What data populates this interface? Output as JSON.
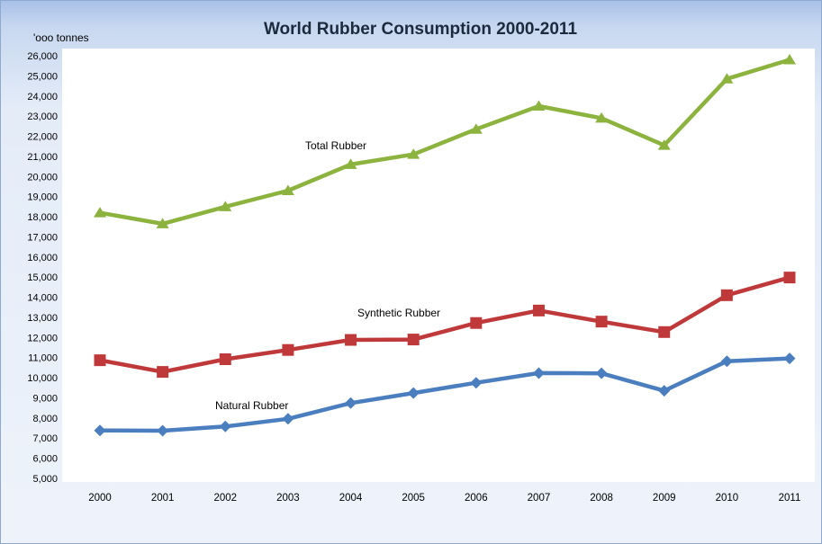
{
  "chart_data": {
    "type": "line",
    "title": "World Rubber Consumption 2000-2011",
    "ylabel": "'ooo tonnes",
    "xlabel": "",
    "categories": [
      "2000",
      "2001",
      "2002",
      "2003",
      "2004",
      "2005",
      "2006",
      "2007",
      "2008",
      "2009",
      "2010",
      "2011"
    ],
    "ylim": [
      5000,
      26000
    ],
    "yticks": [
      5000,
      6000,
      7000,
      8000,
      9000,
      10000,
      11000,
      12000,
      13000,
      14000,
      15000,
      16000,
      17000,
      18000,
      19000,
      20000,
      21000,
      22000,
      23000,
      24000,
      25000,
      26000
    ],
    "ytick_labels": [
      "5,000",
      "6,000",
      "7,000",
      "8,000",
      "9,000",
      "10,000",
      "11,000",
      "12,000",
      "13,000",
      "14,000",
      "15,000",
      "16,000",
      "17,000",
      "18,000",
      "19,000",
      "20,000",
      "21,000",
      "22,000",
      "23,000",
      "24,000",
      "25,000",
      "26,000"
    ],
    "grid": false,
    "series": [
      {
        "name": "Total Rubber",
        "color": "#8db33f",
        "marker": "triangle",
        "values": [
          18200,
          17650,
          18500,
          19300,
          20600,
          21100,
          22350,
          23500,
          22900,
          21550,
          24850,
          25800
        ]
      },
      {
        "name": "Synthetic Rubber",
        "color": "#c0393a",
        "marker": "square",
        "values": [
          10870,
          10290,
          10920,
          11380,
          11880,
          11900,
          12720,
          13340,
          12790,
          12270,
          14100,
          14980
        ]
      },
      {
        "name": "Natural Rubber",
        "color": "#4a7ebf",
        "marker": "diamond",
        "values": [
          7380,
          7370,
          7580,
          7960,
          8740,
          9240,
          9750,
          10230,
          10220,
          9350,
          10820,
          10960
        ]
      }
    ]
  }
}
